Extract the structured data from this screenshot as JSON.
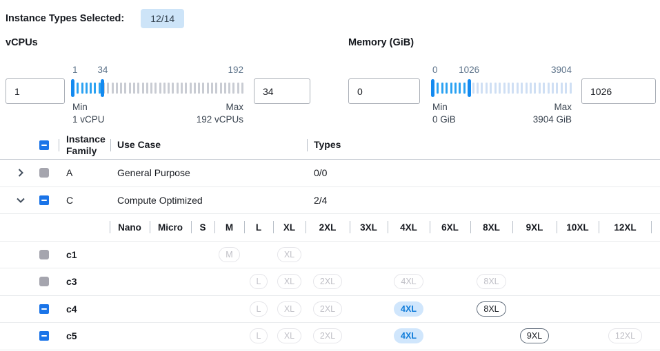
{
  "colors": {
    "text": "#16191f",
    "accent": "#1a74e8",
    "handle_blue": "#138af0",
    "tick_active": "#2ba2f2",
    "badge_bg": "#cde4f8",
    "muted_label": "#5c7289",
    "minmax_text": "#3a4450",
    "sep": "#b8bfc8",
    "row_divider": "#e9ebed",
    "header_divider": "#c3c8d0",
    "cb_gray": "#a5a5ae",
    "input_border": "#a9aeb6",
    "pill_disabled_border": "#e5e5e9",
    "pill_disabled_text": "#bfbfc6",
    "pill_available_border": "#5f6b7a",
    "pill_selected_bg": "#d0e6fc",
    "pill_selected_text": "#0d7bd9"
  },
  "header": {
    "label": "Instance Types Selected:",
    "badge": "12/14"
  },
  "filters": {
    "vcpus": {
      "title": "vCPUs",
      "from": "1",
      "to": "34",
      "scale": {
        "start": "1",
        "mid": "34",
        "end": "192"
      },
      "mid_pct": 17.7,
      "ticks": 40,
      "active_ticks": 7,
      "inactive_color": "#c9ccd3",
      "min": {
        "label": "Min",
        "value": "1 vCPU"
      },
      "max": {
        "label": "Max",
        "value": "192 vCPUs"
      }
    },
    "memory": {
      "title": "Memory (GiB)",
      "from": "0",
      "to": "1026",
      "scale": {
        "start": "0",
        "mid": "1026",
        "end": "3904"
      },
      "mid_pct": 26.3,
      "ticks": 32,
      "active_ticks": 8,
      "inactive_color": "#cfdff4",
      "min": {
        "label": "Min",
        "value": "0 GiB"
      },
      "max": {
        "label": "Max",
        "value": "3904 GiB"
      }
    }
  },
  "table": {
    "columns": [
      "Instance Family",
      "Use Case",
      "Types"
    ],
    "select_all_state": "indeterminate",
    "sizes": [
      "Nano",
      "Micro",
      "S",
      "M",
      "L",
      "XL",
      "2XL",
      "3XL",
      "4XL",
      "6XL",
      "8XL",
      "9XL",
      "10XL",
      "12XL"
    ],
    "families": [
      {
        "name": "A",
        "use_case": "General Purpose",
        "types": "0/0",
        "checkbox": "disabled",
        "expanded": false
      },
      {
        "name": "C",
        "use_case": "Compute Optimized",
        "types": "2/4",
        "checkbox": "indeterminate",
        "expanded": true,
        "children": [
          {
            "name": "c1",
            "checkbox": "disabled",
            "pills": [
              {
                "size": "M",
                "state": "disabled"
              },
              {
                "size": "XL",
                "state": "disabled"
              }
            ]
          },
          {
            "name": "c3",
            "checkbox": "disabled",
            "pills": [
              {
                "size": "L",
                "state": "disabled"
              },
              {
                "size": "XL",
                "state": "disabled"
              },
              {
                "size": "2XL",
                "state": "disabled"
              },
              {
                "size": "4XL",
                "state": "disabled"
              },
              {
                "size": "8XL",
                "state": "disabled"
              }
            ]
          },
          {
            "name": "c4",
            "checkbox": "indeterminate",
            "pills": [
              {
                "size": "L",
                "state": "disabled"
              },
              {
                "size": "XL",
                "state": "disabled"
              },
              {
                "size": "2XL",
                "state": "disabled"
              },
              {
                "size": "4XL",
                "state": "selected"
              },
              {
                "size": "8XL",
                "state": "available"
              }
            ]
          },
          {
            "name": "c5",
            "checkbox": "indeterminate",
            "pills": [
              {
                "size": "L",
                "state": "disabled"
              },
              {
                "size": "XL",
                "state": "disabled"
              },
              {
                "size": "2XL",
                "state": "disabled"
              },
              {
                "size": "4XL",
                "state": "selected"
              },
              {
                "size": "9XL",
                "state": "available"
              },
              {
                "size": "12XL",
                "state": "disabled"
              }
            ]
          }
        ]
      }
    ]
  }
}
